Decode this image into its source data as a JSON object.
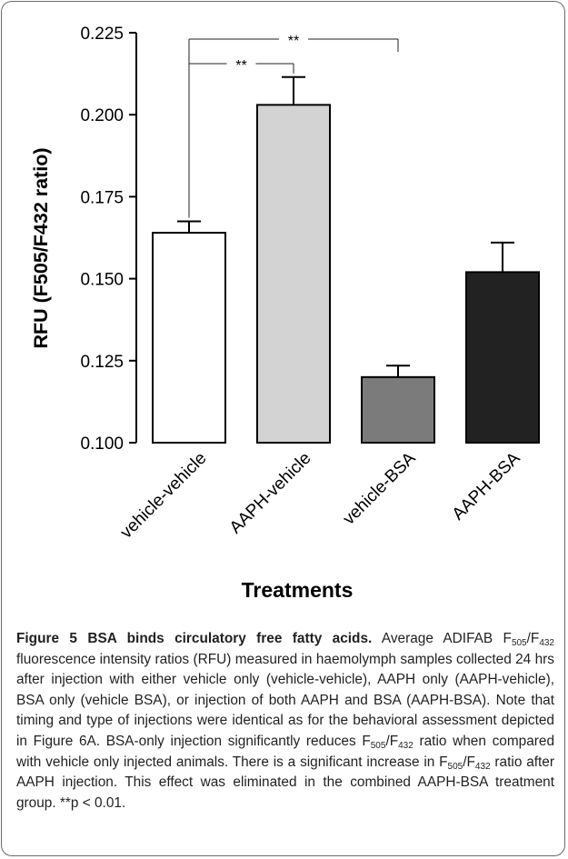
{
  "chart_data": {
    "type": "bar",
    "categories": [
      "vehicle-vehicle",
      "AAPH-vehicle",
      "vehicle-BSA",
      "AAPH-BSA"
    ],
    "values": [
      0.164,
      0.203,
      0.12,
      0.152
    ],
    "errors": [
      0.0035,
      0.0085,
      0.0035,
      0.009
    ],
    "bar_colors": [
      "#ffffff",
      "#d3d3d3",
      "#7b7b7b",
      "#222222"
    ],
    "ylabel": "RFU (F505/F432 ratio)",
    "xlabel": "Treatments",
    "ylim": [
      0.1,
      0.225
    ],
    "yticks": [
      "0.225",
      "0.200",
      "0.175",
      "0.150",
      "0.125",
      "0.100"
    ],
    "significance": [
      {
        "from": "vehicle-vehicle",
        "to": "vehicle-BSA",
        "label": "**"
      },
      {
        "from": "vehicle-vehicle",
        "to": "AAPH-vehicle",
        "label": "**"
      }
    ]
  },
  "caption": {
    "title": "Figure 5 BSA binds circulatory free fatty acids.",
    "p1": " Average ADIFAB F",
    "s1": "505",
    "p2": "/F",
    "s2": "432",
    "p3": " fluorescence intensity ratios (RFU) measured in haemolymph samples collected 24 hrs after injection with either vehicle only (vehicle-vehicle), AAPH only (AAPH-vehicle), BSA only (vehicle BSA), or injection of both AAPH and BSA (AAPH-BSA). Note that timing and type of injections were identical as for the behavioral assessment depicted in Figure 6A. BSA-only injection significantly reduces F",
    "s3": "505",
    "p4": "/F",
    "s4": "432",
    "p5": " ratio when compared with vehicle only injected animals. There is a significant increase in F",
    "s5": "505",
    "p6": "/F",
    "s6": "432",
    "p7": " ratio after AAPH injection. This effect was eliminated in the combined AAPH-BSA treatment group. **p < 0.01."
  }
}
